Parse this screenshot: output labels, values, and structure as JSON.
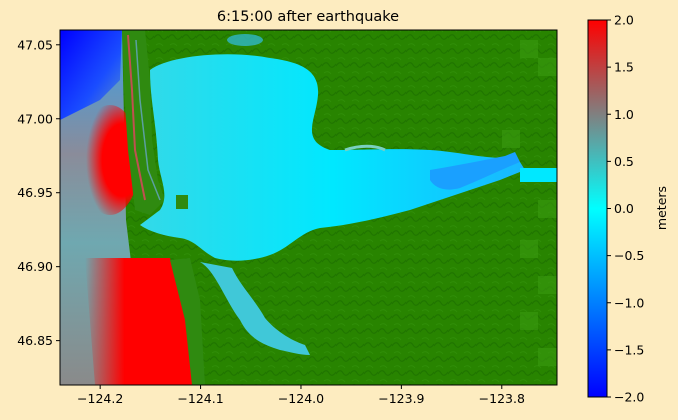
{
  "chart_data": {
    "type": "heatmap",
    "title": "6:15:00 after earthquake",
    "xlabel": "",
    "ylabel": "",
    "xlim": [
      -124.24,
      -123.745
    ],
    "ylim": [
      46.82,
      47.06
    ],
    "x_ticks": [
      {
        "value": -124.2,
        "label": "−124.2"
      },
      {
        "value": -124.1,
        "label": "−124.1"
      },
      {
        "value": -124.0,
        "label": "−124.0"
      },
      {
        "value": -123.9,
        "label": "−123.9"
      },
      {
        "value": -123.8,
        "label": "−123.8"
      }
    ],
    "y_ticks": [
      {
        "value": 46.85,
        "label": "46.85"
      },
      {
        "value": 46.9,
        "label": "46.90"
      },
      {
        "value": 46.95,
        "label": "46.95"
      },
      {
        "value": 47.0,
        "label": "47.00"
      },
      {
        "value": 47.05,
        "label": "47.05"
      }
    ],
    "colorbar": {
      "label": "meters",
      "range": [
        -2.0,
        2.0
      ],
      "ticks": [
        {
          "value": 2.0,
          "label": "2.0"
        },
        {
          "value": 1.5,
          "label": "1.5"
        },
        {
          "value": 1.0,
          "label": "1.0"
        },
        {
          "value": 0.5,
          "label": "0.5"
        },
        {
          "value": 0.0,
          "label": "0.0"
        },
        {
          "value": -0.5,
          "label": "−0.5"
        },
        {
          "value": -1.0,
          "label": "−1.0"
        },
        {
          "value": -1.5,
          "label": "−1.5"
        },
        {
          "value": -2.0,
          "label": "−2.0"
        }
      ],
      "colors": [
        "#0000ff",
        "#00ffff",
        "#808080",
        "#ff0000"
      ]
    },
    "land_color": "#1f7f00",
    "water_color": "#00e5ff"
  }
}
